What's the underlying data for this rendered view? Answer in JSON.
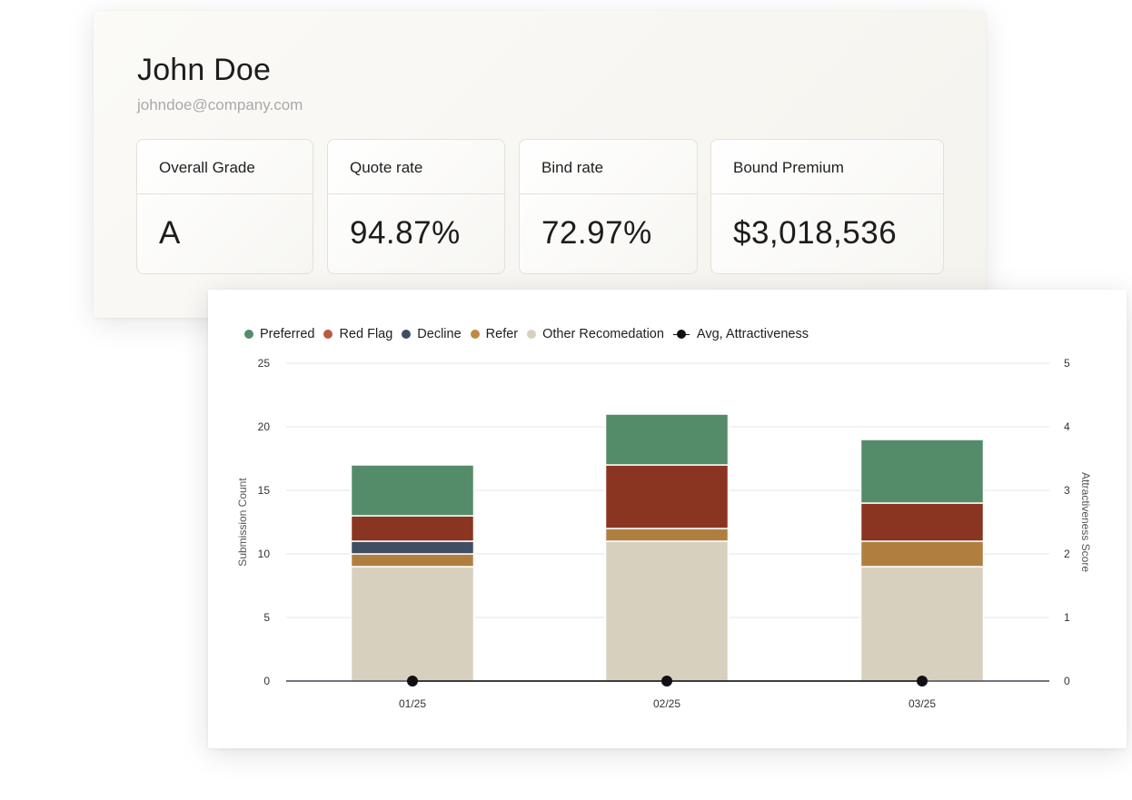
{
  "profile": {
    "name": "John Doe",
    "email": "johndoe@company.com"
  },
  "metrics": [
    {
      "label": "Overall Grade",
      "value": "A"
    },
    {
      "label": "Quote rate",
      "value": "94.87%"
    },
    {
      "label": "Bind rate",
      "value": "72.97%"
    },
    {
      "label": "Bound Premium",
      "value": "$3,018,536"
    }
  ],
  "legend": [
    {
      "label": "Preferred",
      "color": "#548c6a"
    },
    {
      "label": "Red Flag",
      "color": "#b85a45"
    },
    {
      "label": "Decline",
      "color": "#3f4e62"
    },
    {
      "label": "Refer",
      "color": "#c08a45"
    },
    {
      "label": "Other Recomedation",
      "color": "#d8d0bf"
    },
    {
      "label": "Avg, Attractiveness",
      "color": "#111111"
    }
  ],
  "chart_data": {
    "type": "bar",
    "stacked": true,
    "categories": [
      "01/25",
      "02/25",
      "03/25"
    ],
    "series": [
      {
        "name": "Other Recomedation",
        "color": "#d8d0bf",
        "values": [
          9,
          11,
          9
        ]
      },
      {
        "name": "Refer",
        "color": "#b07f40",
        "values": [
          1,
          1,
          2
        ]
      },
      {
        "name": "Decline",
        "color": "#3f4e62",
        "values": [
          1,
          0,
          0
        ]
      },
      {
        "name": "Red Flag",
        "color": "#8a3522",
        "values": [
          2,
          5,
          3
        ]
      },
      {
        "name": "Preferred",
        "color": "#548c6a",
        "values": [
          4,
          4,
          5
        ]
      }
    ],
    "line_series": {
      "name": "Avg, Attractiveness",
      "color": "#111111",
      "values": [
        0,
        0,
        0
      ]
    },
    "ylabel": "Submission Count",
    "y2label": "Attractiveness Score",
    "ylim": [
      0,
      25
    ],
    "y2lim": [
      0,
      5
    ],
    "yticks": [
      "0",
      "5",
      "10",
      "15",
      "20",
      "25"
    ],
    "y2ticks": [
      "0",
      "1",
      "2",
      "3",
      "4",
      "5"
    ],
    "grid": true,
    "legend_position": "top-left"
  }
}
